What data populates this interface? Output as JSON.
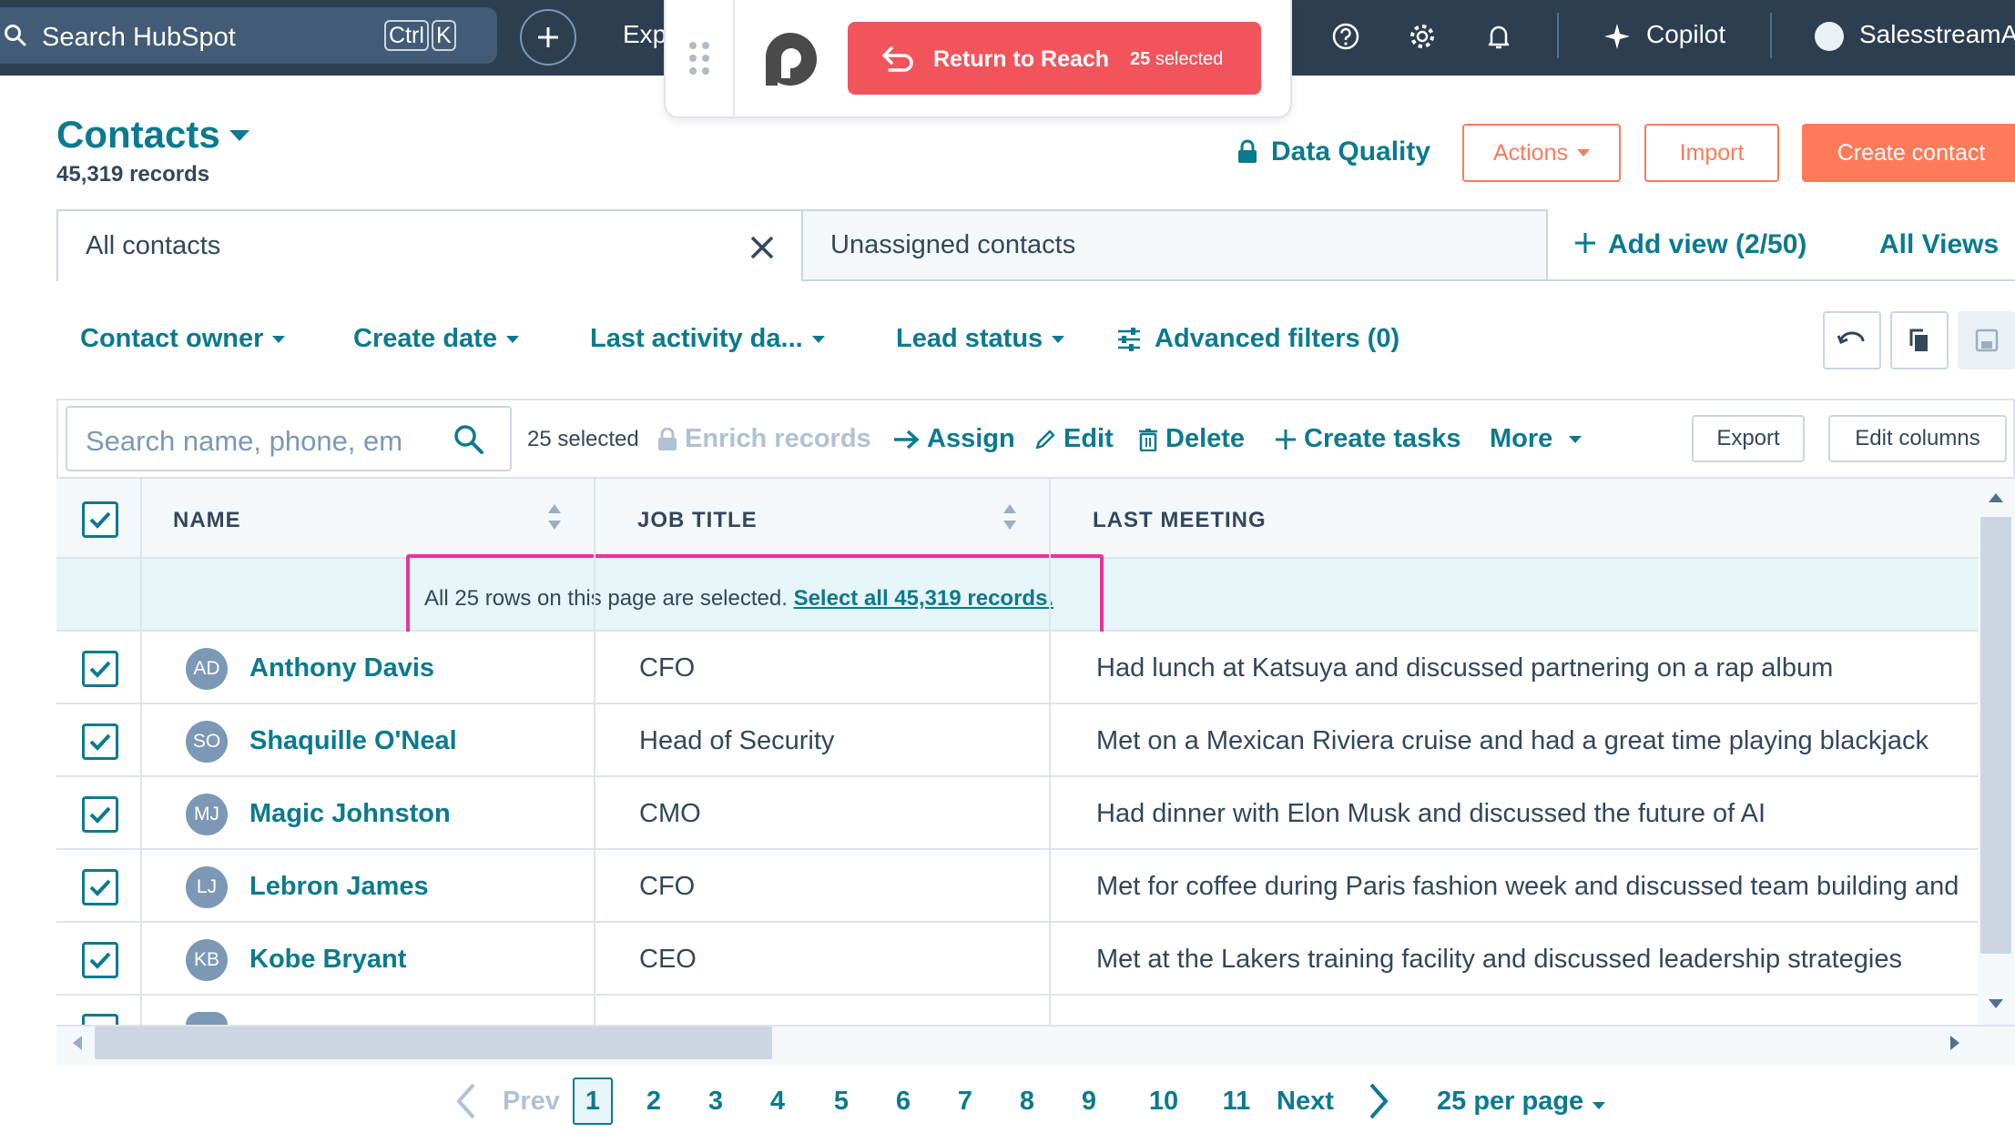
{
  "topnav": {
    "search_placeholder": "Search HubSpot",
    "shortcut_ctrl": "Ctrl",
    "shortcut_key": "K",
    "explore": "Exp",
    "copilot": "Copilot",
    "account": "SalesstreamA"
  },
  "reach": {
    "button_label": "Return to Reach",
    "selected_count": "25",
    "selected_word": "selected",
    "button_color": "#f2545b"
  },
  "header": {
    "title": "Contacts",
    "records": "45,319 records",
    "data_quality": "Data Quality",
    "actions": "Actions",
    "import": "Import",
    "create": "Create contact"
  },
  "tabs": {
    "all": "All contacts",
    "unassigned": "Unassigned contacts",
    "add_view": "Add view (2/50)",
    "all_views": "All Views"
  },
  "filters": {
    "owner": "Contact owner",
    "create_date": "Create date",
    "last_activity": "Last activity da...",
    "lead_status": "Lead status",
    "advanced": "Advanced filters (0)"
  },
  "toolbar": {
    "search_placeholder": "Search name, phone, em",
    "selected": "25 selected",
    "enrich": "Enrich records",
    "assign": "Assign",
    "edit": "Edit",
    "delete": "Delete",
    "create_tasks": "Create tasks",
    "more": "More",
    "export": "Export",
    "edit_columns": "Edit columns"
  },
  "table": {
    "columns": [
      "NAME",
      "JOB TITLE",
      "LAST MEETING"
    ],
    "banner_text": "All 25 rows on this page are selected.",
    "banner_link": "Select all 45,319 records.",
    "rows": [
      {
        "initials": "AD",
        "name": "Anthony Davis",
        "job": "CFO",
        "meeting": "Had lunch at Katsuya and discussed partnering on a rap album"
      },
      {
        "initials": "SO",
        "name": "Shaquille O'Neal",
        "job": "Head of Security",
        "meeting": "Met on a Mexican Riviera cruise and had a great time playing blackjack"
      },
      {
        "initials": "MJ",
        "name": "Magic Johnston",
        "job": "CMO",
        "meeting": "Had dinner with Elon Musk and discussed the future of AI"
      },
      {
        "initials": "LJ",
        "name": "Lebron James",
        "job": "CFO",
        "meeting": "Met for coffee during Paris fashion week and discussed team building and"
      },
      {
        "initials": "KB",
        "name": "Kobe Bryant",
        "job": "CEO",
        "meeting": "Met at the Lakers training facility and discussed leadership strategies"
      }
    ]
  },
  "pagination": {
    "prev": "Prev",
    "pages": [
      "1",
      "2",
      "3",
      "4",
      "5",
      "6",
      "7",
      "8",
      "9",
      "10",
      "11"
    ],
    "current": "1",
    "next": "Next",
    "per_page": "25 per page"
  },
  "colors": {
    "teal": "#0b7a8e",
    "orange": "#ff7a59",
    "nav": "#2d3e50",
    "highlight": "#e8339c"
  }
}
